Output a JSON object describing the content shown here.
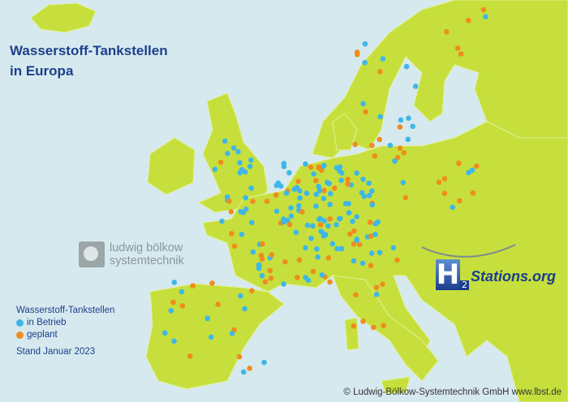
{
  "title": {
    "line1": "Wasserstoff-Tankstellen",
    "line2": "in Europa"
  },
  "legend": {
    "heading": "Wasserstoff-Tankstellen",
    "items": [
      {
        "label": "in Betrieb",
        "color": "#3fb6e8"
      },
      {
        "label": "geplant",
        "color": "#f08c1e"
      }
    ],
    "stand": "Stand Januar 2023"
  },
  "logos": {
    "lbst": {
      "line1": "ludwig bölkow",
      "line2": "systemtechnik"
    },
    "h2stations": {
      "letter": "H",
      "subscript": "2",
      "text": "Stations.org"
    }
  },
  "copyright": "© Ludwig-Bölkow-Systemtechnik GmbH www.lbst.de",
  "colors": {
    "sea": "#d6e9ef",
    "land": "#c6df3c",
    "border": "#e8f3a8"
  }
}
